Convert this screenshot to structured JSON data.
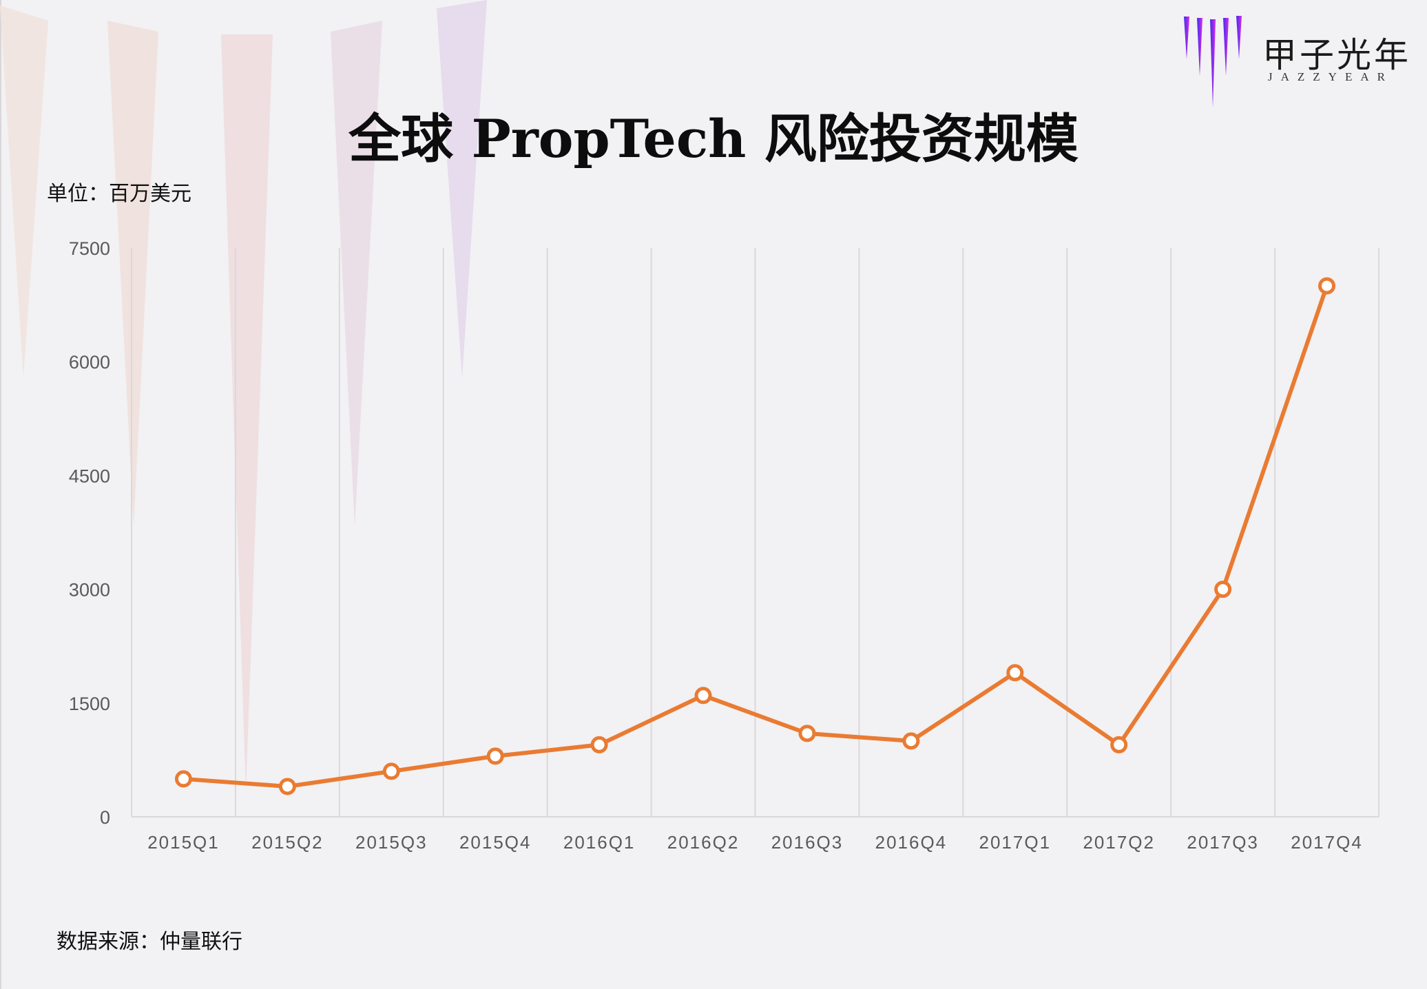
{
  "header": {
    "title": "全球 PropTech 风险投资规模",
    "logo": {
      "name_cn": "甲子光年",
      "name_en": "JAZZYEAR",
      "icon": "gradient-bars-icon"
    }
  },
  "unit_label": "单位：百万美元",
  "source_label": "数据来源：仲量联行",
  "colors": {
    "background": "#f2f1f3",
    "line": "#e97b32",
    "marker_fill": "#ffffff",
    "grid": "#d9d8db",
    "logo_gradient_start": "#3a2ef0",
    "logo_gradient_end": "#e02ae8"
  },
  "chart_data": {
    "type": "line",
    "title": "全球 PropTech 风险投资规模",
    "xlabel": "",
    "ylabel": "单位：百万美元",
    "categories": [
      "2015Q1",
      "2015Q2",
      "2015Q3",
      "2015Q4",
      "2016Q1",
      "2016Q2",
      "2016Q3",
      "2016Q4",
      "2017Q1",
      "2017Q2",
      "2017Q3",
      "2017Q4"
    ],
    "series": [
      {
        "name": "PropTech 风险投资规模",
        "values": [
          500,
          400,
          600,
          800,
          950,
          1600,
          1100,
          1000,
          1900,
          950,
          3000,
          7000
        ]
      }
    ],
    "yticks": [
      0,
      1500,
      3000,
      4500,
      6000,
      7500
    ],
    "ylim": [
      0,
      7500
    ],
    "grid": {
      "vertical": true,
      "horizontal": false
    },
    "legend": "none",
    "markers": "hollow-circle",
    "source": "数据来源：仲量联行"
  }
}
